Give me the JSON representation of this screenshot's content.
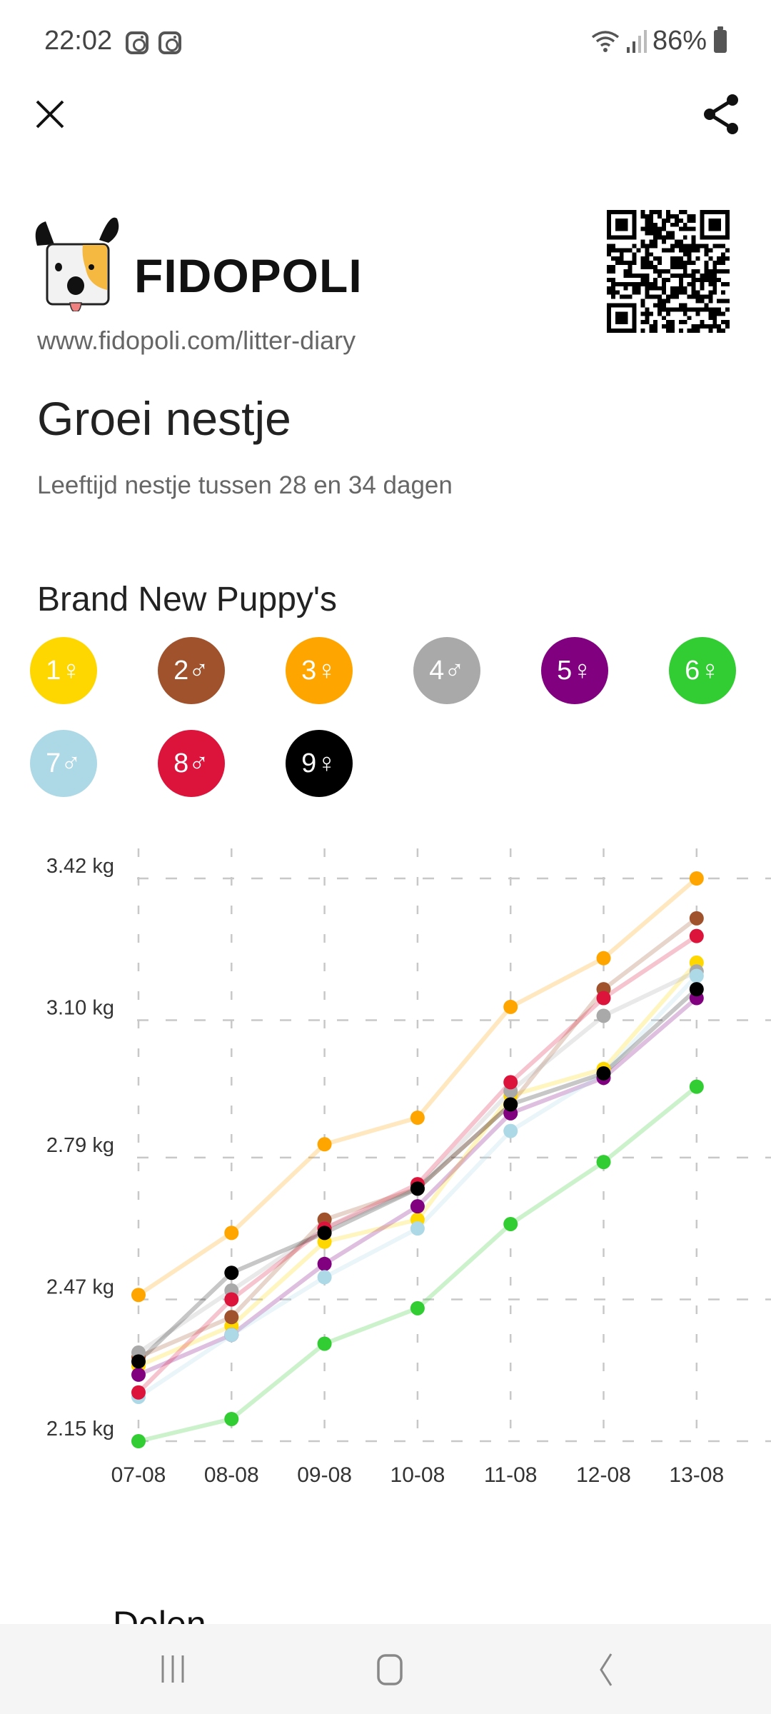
{
  "status_bar": {
    "time": "22:02",
    "notification_icons": [
      "instagram-icon",
      "instagram-icon"
    ],
    "battery": "86%"
  },
  "toolbar": {
    "close_icon": "close-icon",
    "share_icon": "share-icon"
  },
  "brand": {
    "name": "FIDOPOLI",
    "url": "www.fidopoli.com/litter-diary"
  },
  "page": {
    "title": "Groei nestje",
    "subtitle": "Leeftijd nestje tussen 28 en 34 dagen"
  },
  "litter": {
    "name": "Brand New Puppy's",
    "puppies": [
      {
        "label": "1♀",
        "number": "1",
        "sex": "female",
        "color": "#FFD700"
      },
      {
        "label": "2♂",
        "number": "2",
        "sex": "male",
        "color": "#A0522D"
      },
      {
        "label": "3♀",
        "number": "3",
        "sex": "female",
        "color": "#FFA500"
      },
      {
        "label": "4♂",
        "number": "4",
        "sex": "male",
        "color": "#A9A9A9"
      },
      {
        "label": "5♀",
        "number": "5",
        "sex": "female",
        "color": "#800080"
      },
      {
        "label": "6♀",
        "number": "6",
        "sex": "female",
        "color": "#32CD32"
      },
      {
        "label": "7♂",
        "number": "7",
        "sex": "male",
        "color": "#ADD8E6"
      },
      {
        "label": "8♂",
        "number": "8",
        "sex": "male",
        "color": "#DC143C"
      },
      {
        "label": "9♀",
        "number": "9",
        "sex": "female",
        "color": "#000000"
      }
    ]
  },
  "chart_data": {
    "type": "line",
    "title": "",
    "xlabel": "",
    "ylabel": "",
    "categories": [
      "07-08",
      "08-08",
      "09-08",
      "10-08",
      "11-08",
      "12-08",
      "13-08"
    ],
    "y_ticks": [
      3.42,
      3.1,
      2.79,
      2.47,
      2.15
    ],
    "y_tick_labels": [
      "3.42 kg",
      "3.10 kg",
      "2.79 kg",
      "2.47 kg",
      "2.15 kg"
    ],
    "ylim": [
      2.15,
      3.42
    ],
    "grid": true,
    "legend": "none",
    "series": [
      {
        "name": "1♀",
        "color": "#FFD700",
        "values": [
          2.32,
          2.41,
          2.6,
          2.65,
          2.93,
          2.99,
          3.23
        ]
      },
      {
        "name": "2♂",
        "color": "#A0522D",
        "values": [
          2.34,
          2.43,
          2.65,
          2.72,
          2.91,
          3.17,
          3.33
        ]
      },
      {
        "name": "3♀",
        "color": "#FFA500",
        "values": [
          2.48,
          2.62,
          2.82,
          2.88,
          3.13,
          3.24,
          3.42
        ]
      },
      {
        "name": "4♂",
        "color": "#A9A9A9",
        "values": [
          2.35,
          2.49,
          2.63,
          2.72,
          2.94,
          3.11,
          3.21
        ]
      },
      {
        "name": "5♀",
        "color": "#800080",
        "values": [
          2.3,
          2.39,
          2.55,
          2.68,
          2.89,
          2.97,
          3.15
        ]
      },
      {
        "name": "6♀",
        "color": "#32CD32",
        "values": [
          2.15,
          2.2,
          2.37,
          2.45,
          2.64,
          2.78,
          2.95
        ]
      },
      {
        "name": "7♂",
        "color": "#ADD8E6",
        "values": [
          2.25,
          2.39,
          2.52,
          2.63,
          2.85,
          2.98,
          3.2
        ]
      },
      {
        "name": "8♂",
        "color": "#DC143C",
        "values": [
          2.26,
          2.47,
          2.63,
          2.73,
          2.96,
          3.15,
          3.29
        ]
      },
      {
        "name": "9♀",
        "color": "#000000",
        "values": [
          2.33,
          2.53,
          2.62,
          2.72,
          2.91,
          2.98,
          3.17
        ]
      }
    ]
  },
  "share_section": {
    "label": "Delen"
  },
  "nav_bar": {
    "recents": "recents-icon",
    "home": "home-icon",
    "back": "back-icon"
  }
}
